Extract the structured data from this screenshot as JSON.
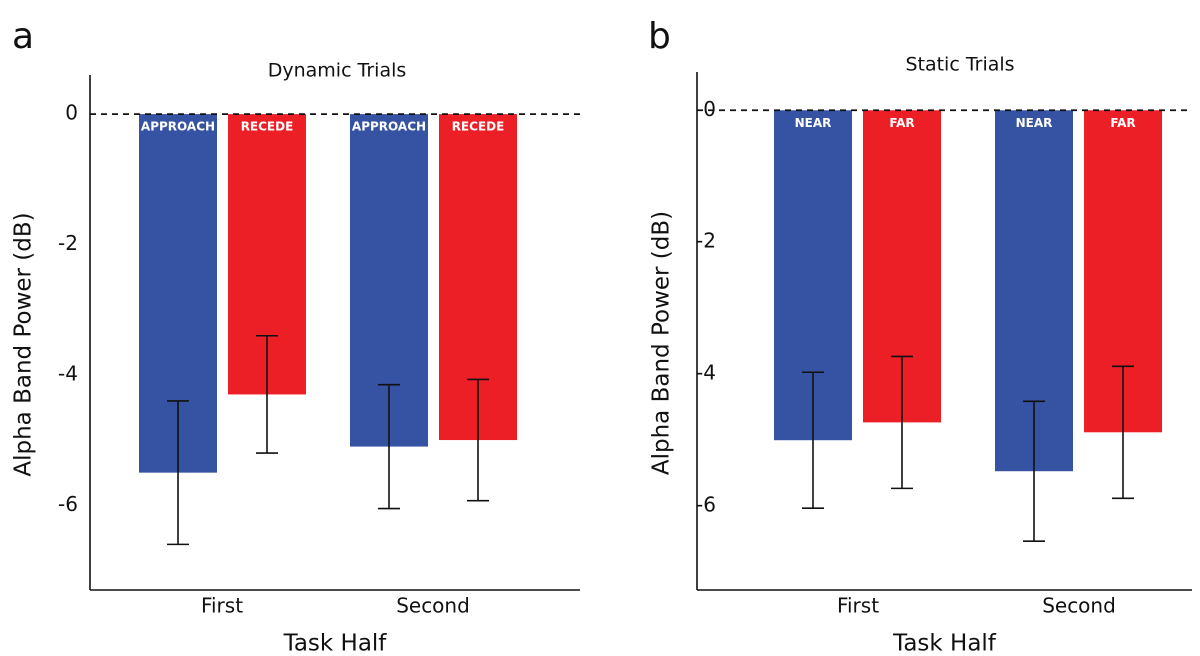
{
  "chart_data": [
    {
      "type": "bar",
      "panel_label": "a",
      "title": "Dynamic Trials",
      "xlabel": "Task Half",
      "ylabel": "Alpha Band Power (dB)",
      "categories": [
        "First",
        "Second"
      ],
      "series": [
        {
          "name": "APPROACH",
          "color": "#3653a3",
          "values": [
            -5.5,
            -5.1
          ],
          "errors": [
            1.1,
            0.95
          ]
        },
        {
          "name": "RECEDE",
          "color": "#ec1f26",
          "values": [
            -4.3,
            -5.0
          ],
          "errors": [
            0.9,
            0.93
          ]
        }
      ],
      "ylim": [
        -7.3,
        0.6
      ],
      "yticks": [
        0,
        -2,
        -4,
        -6
      ]
    },
    {
      "type": "bar",
      "panel_label": "b",
      "title": "Static Trials",
      "xlabel": "Task Half",
      "ylabel": "Alpha Band Power (dB)",
      "categories": [
        "First",
        "Second"
      ],
      "series": [
        {
          "name": "NEAR",
          "color": "#3653a3",
          "values": [
            -5.0,
            -5.47
          ],
          "errors": [
            1.03,
            1.06
          ]
        },
        {
          "name": "FAR",
          "color": "#ec1f26",
          "values": [
            -4.73,
            -4.88
          ],
          "errors": [
            1.0,
            1.0
          ]
        }
      ],
      "ylim": [
        -7.27,
        0.58
      ],
      "yticks": [
        0,
        -2,
        -4,
        -6
      ]
    }
  ]
}
